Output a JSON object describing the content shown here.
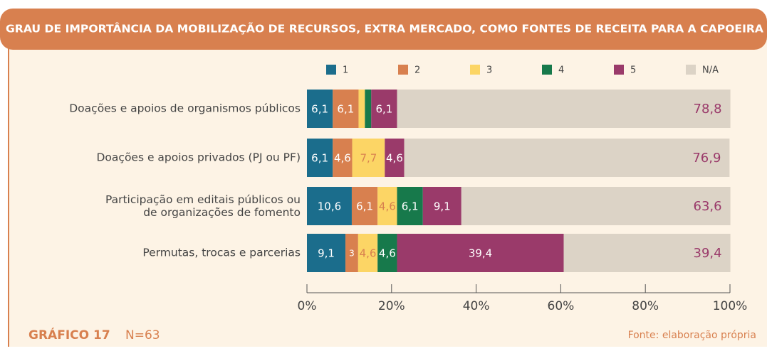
{
  "chart_data": {
    "type": "stacked_barh",
    "title": "GRAU DE IMPORTÂNCIA DA MOBILIZAÇÃO DE RECURSOS, EXTRA MERCADO, COMO FONTES DE RECEITA PARA A CAPOEIRA",
    "figure_label": "GRÁFICO 17",
    "sample": "N=63",
    "source": "Fonte: elaboração própria",
    "categories": [
      "Doações e apoios de organismos públicos",
      "Doações e apoios privados (PJ ou PF)",
      "Participação em editais públicos ou\nde organizações de fomento",
      "Permutas, trocas e parcerias"
    ],
    "series": [
      {
        "name": "1",
        "color": "#1b6d8c",
        "label_color": "#ffffff",
        "values": [
          6.1,
          6.1,
          10.6,
          9.1
        ],
        "value_labels": [
          "6,1",
          "6,1",
          "10,6",
          "9,1"
        ]
      },
      {
        "name": "2",
        "color": "#d8804f",
        "label_color": "#ffffff",
        "values": [
          6.1,
          4.6,
          6.1,
          3
        ],
        "value_labels": [
          "6,1",
          "4,6",
          "6,1",
          "3"
        ]
      },
      {
        "name": "3",
        "color": "#fcd565",
        "label_color": "#d8804f",
        "values": [
          1.5,
          7.7,
          4.6,
          4.6
        ],
        "value_labels": [
          null,
          "7,7",
          "4,6",
          "4,6"
        ]
      },
      {
        "name": "4",
        "color": "#17794b",
        "label_color": "#ffffff",
        "values": [
          1.5,
          0,
          6.1,
          4.6
        ],
        "value_labels": [
          null,
          null,
          "6,1",
          "4,6"
        ]
      },
      {
        "name": "5",
        "color": "#9a3a6a",
        "label_color": "#ffffff",
        "values": [
          6.1,
          4.6,
          9.1,
          39.4
        ],
        "value_labels": [
          "6,1",
          "4,6",
          "9,1",
          "39,4"
        ]
      },
      {
        "name": "N/A",
        "color": "#dcd3c6",
        "label_color": "#9a3a6a",
        "values": [
          78.8,
          76.9,
          63.6,
          39.4
        ],
        "value_labels": [
          "78,8",
          "76,9",
          "63,6",
          "39,4"
        ]
      }
    ],
    "xlim": [
      0,
      100
    ],
    "xticks": [
      {
        "value": 0,
        "label": "0%"
      },
      {
        "value": 20,
        "label": "20%"
      },
      {
        "value": 40,
        "label": "40%"
      },
      {
        "value": 60,
        "label": "60%"
      },
      {
        "value": 80,
        "label": "80%"
      },
      {
        "value": 100,
        "label": "100%"
      }
    ]
  }
}
